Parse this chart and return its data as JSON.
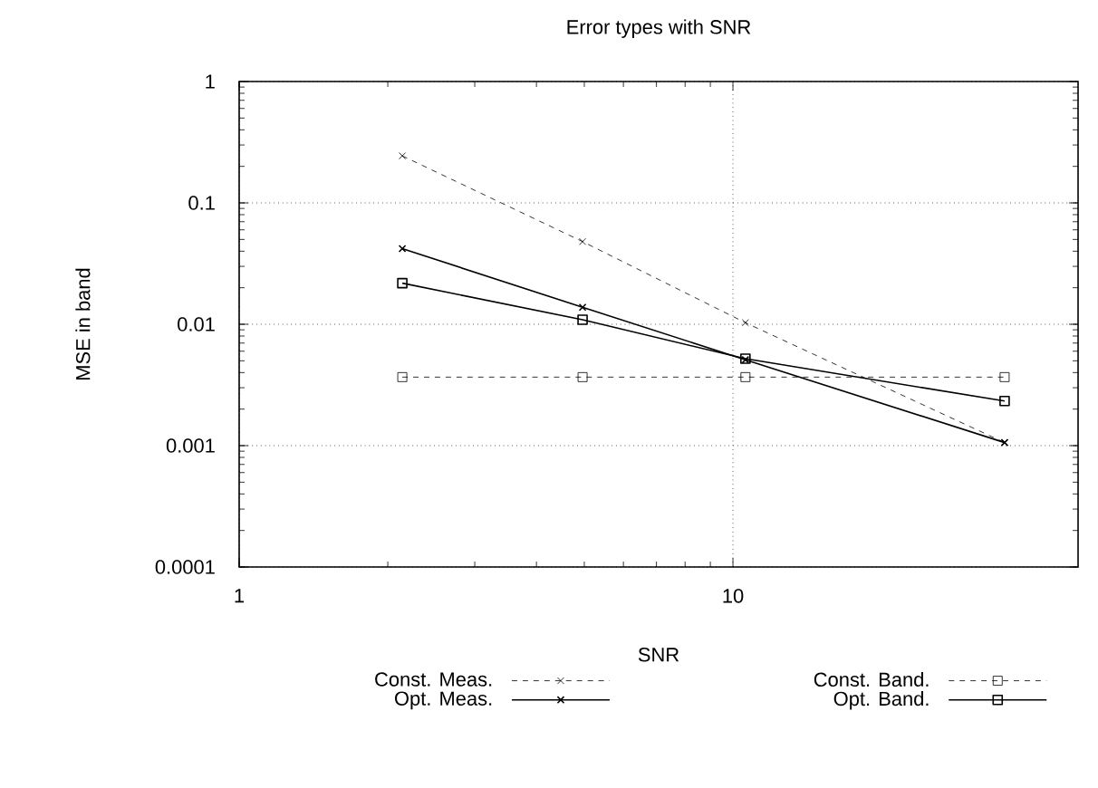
{
  "chart_data": {
    "type": "line",
    "title": "Error types with SNR",
    "xlabel": "SNR",
    "ylabel": "MSE in band",
    "x": [
      2.14,
      4.96,
      10.6,
      35.5
    ],
    "series": [
      {
        "name": "Const. Meas.",
        "color": "#000000",
        "marker": "cross",
        "line_style": "dashed",
        "values": [
          0.244,
          0.048,
          0.0103,
          0.00106
        ]
      },
      {
        "name": "Const. Band.",
        "color": "#000000",
        "marker": "square",
        "line_style": "dashed",
        "values": [
          0.00367,
          0.00367,
          0.00367,
          0.00367
        ]
      },
      {
        "name": "Opt. Meas.",
        "color": "#000000",
        "marker": "cross",
        "line_style": "solid",
        "values": [
          0.042,
          0.0138,
          0.0051,
          0.00106
        ]
      },
      {
        "name": "Opt. Band.",
        "color": "#000000",
        "marker": "square",
        "line_style": "solid",
        "values": [
          0.0218,
          0.0109,
          0.0052,
          0.00233
        ]
      }
    ],
    "log": "xy",
    "xlim": [
      1,
      50
    ],
    "ylim": [
      0.0001,
      1
    ],
    "xticks": [
      1,
      10
    ],
    "yticks": [
      0.0001,
      0.001,
      0.01,
      0.1,
      1
    ],
    "grid": true,
    "legend": "bottom"
  }
}
